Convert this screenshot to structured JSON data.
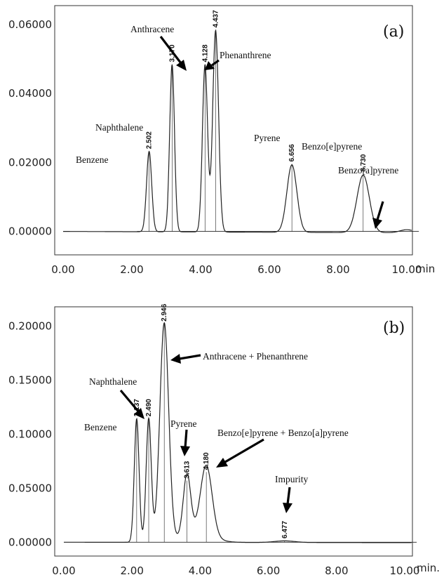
{
  "chart_data": [
    {
      "type": "line",
      "panel_label": "(a)",
      "xlabel": "min",
      "xlim": [
        0,
        10.4
      ],
      "ylim": [
        -0.0068,
        0.0655
      ],
      "x_ticks": [
        "0.00",
        "2.00",
        "4.00",
        "6.00",
        "8.00",
        "10.00"
      ],
      "y_ticks": [
        "0.00000",
        "0.02000",
        "0.04000",
        "0.06000"
      ],
      "peaks": [
        {
          "rt": 2.502,
          "rt_label": "2.502",
          "height": 0.0233,
          "compound": "Benzene"
        },
        {
          "rt": 3.17,
          "rt_label": "3.170",
          "height": 0.0485,
          "compound": ""
        },
        {
          "rt": 4.128,
          "rt_label": "4.128",
          "height": 0.0485,
          "compound": "Anthracene"
        },
        {
          "rt": 4.437,
          "rt_label": "4.437",
          "height": 0.0585,
          "compound": "Phenanthrene"
        },
        {
          "rt": 6.656,
          "rt_label": "6.656",
          "height": 0.0196,
          "compound": "Pyrene"
        },
        {
          "rt": 8.73,
          "rt_label": "8.730",
          "height": 0.0167,
          "compound": "Benzo[e]pyrene"
        },
        {
          "rt": 10.0,
          "rt_label": "",
          "height": 0.0009,
          "compound": "Benzo[a]pyrene"
        }
      ],
      "compound_labels": [
        "Benzene",
        "Naphthalene",
        "Anthracene",
        "Phenanthrene",
        "Pyrene",
        "Benzo[e]pyrene",
        "Benzo[a]pyrene"
      ]
    },
    {
      "type": "line",
      "panel_label": "(b)",
      "xlabel": "min.",
      "xlim": [
        0,
        10.4
      ],
      "ylim": [
        -0.0128,
        0.218
      ],
      "x_ticks": [
        "0.00",
        "2.00",
        "4.00",
        "6.00",
        "8.00",
        "10.00"
      ],
      "y_ticks": [
        "0.00000",
        "0.05000",
        "0.10000",
        "0.15000",
        "0.20000"
      ],
      "peaks": [
        {
          "rt": 2.137,
          "rt_label": "2.137",
          "height": 0.1145,
          "compound": "Benzene"
        },
        {
          "rt": 2.49,
          "rt_label": "2.490",
          "height": 0.1145,
          "compound": "Naphthalene"
        },
        {
          "rt": 2.946,
          "rt_label": "2.946",
          "height": 0.2025,
          "compound": "Anthracene + Phenanthrene"
        },
        {
          "rt": 3.613,
          "rt_label": "3.613",
          "height": 0.057,
          "compound": "Pyrene"
        },
        {
          "rt": 4.18,
          "rt_label": "4.180",
          "height": 0.065,
          "compound": "Benzo[e]pyrene + Benzo[a]pyrene"
        },
        {
          "rt": 6.477,
          "rt_label": "6.477",
          "height": 0.0015,
          "compound": "Impurity"
        }
      ],
      "compound_labels": [
        "Benzene",
        "Naphthalene",
        "Anthracene + Phenanthrene",
        "Pyrene",
        "Benzo[e]pyrene + Benzo[a]pyrene",
        "Impurity"
      ]
    }
  ]
}
